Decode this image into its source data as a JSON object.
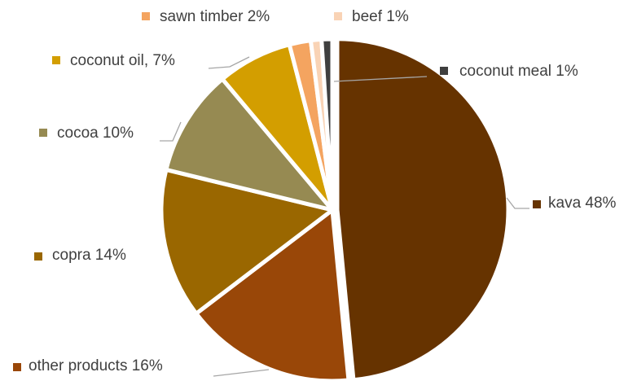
{
  "chart_data": {
    "type": "pie",
    "title": "",
    "series": [
      {
        "values": [
          48,
          16,
          14,
          10,
          7,
          2,
          1,
          1
        ],
        "categories": [
          "kava",
          "other products",
          "copra",
          "cocoa",
          "coconut oil",
          "sawn timber",
          "beef",
          "coconut meal"
        ]
      }
    ],
    "slices": [
      {
        "name": "kava",
        "value": 48,
        "label": "kava 48%",
        "color": "#663300"
      },
      {
        "name": "other products",
        "value": 16,
        "label": "other products  16%",
        "color": "#994708"
      },
      {
        "name": "copra",
        "value": 14,
        "label": "copra 14%",
        "color": "#9A6700"
      },
      {
        "name": "cocoa",
        "value": 10,
        "label": "cocoa 10%",
        "color": "#968A52"
      },
      {
        "name": "coconut oil",
        "value": 7,
        "label": "coconut oil, 7%",
        "color": "#D39E00"
      },
      {
        "name": "sawn timber",
        "value": 2,
        "label": "sawn timber 2%",
        "color": "#F4A460"
      },
      {
        "name": "beef",
        "value": 1,
        "label": "beef 1%",
        "color": "#F9D3B5"
      },
      {
        "name": "coconut meal",
        "value": 1,
        "label": "coconut meal 1%",
        "color": "#3F3F3F"
      }
    ],
    "legend": "none",
    "data_labels": "outside with leader lines and color markers"
  }
}
